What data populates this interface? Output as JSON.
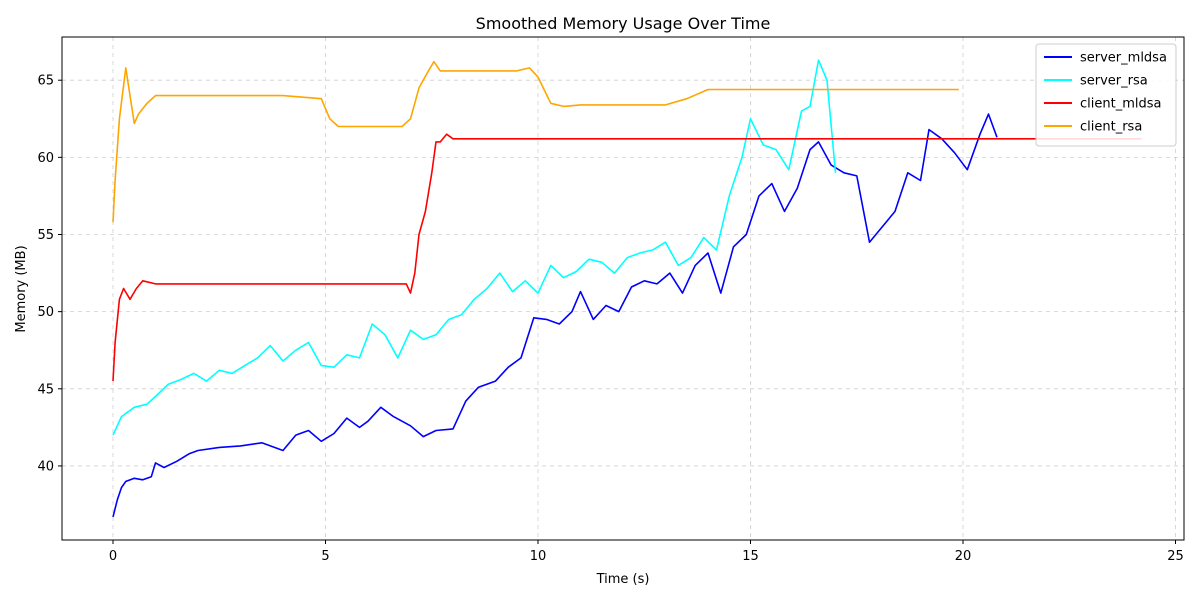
{
  "chart_data": {
    "type": "line",
    "title": "Smoothed Memory Usage Over Time",
    "xlabel": "Time (s)",
    "ylabel": "Memory (MB)",
    "xlim": [
      -1.2,
      25.2
    ],
    "ylim": [
      35.2,
      67.8
    ],
    "xticks": [
      0,
      5,
      10,
      15,
      20,
      25
    ],
    "yticks": [
      40,
      45,
      50,
      55,
      60,
      65
    ],
    "grid": true,
    "legend_position": "top-right",
    "series": [
      {
        "name": "server_mldsa",
        "color": "#0000ff",
        "x": [
          0,
          0.1,
          0.2,
          0.3,
          0.5,
          0.7,
          0.9,
          1.0,
          1.2,
          1.5,
          1.8,
          2.0,
          2.5,
          3.0,
          3.5,
          4.0,
          4.3,
          4.6,
          4.9,
          5.2,
          5.5,
          5.8,
          6.0,
          6.3,
          6.6,
          7.0,
          7.3,
          7.6,
          8.0,
          8.3,
          8.6,
          9.0,
          9.3,
          9.6,
          9.9,
          10.2,
          10.5,
          10.8,
          11.0,
          11.3,
          11.6,
          11.9,
          12.2,
          12.5,
          12.8,
          13.1,
          13.4,
          13.7,
          14.0,
          14.3,
          14.6,
          14.9,
          15.2,
          15.5,
          15.8,
          16.1,
          16.4,
          16.6,
          16.9,
          17.2,
          17.5,
          17.8,
          18.1,
          18.4,
          18.7,
          19.0,
          19.2,
          19.5,
          19.8,
          20.1,
          20.4,
          20.6,
          20.8
        ],
        "values": [
          36.7,
          37.8,
          38.6,
          39.0,
          39.2,
          39.1,
          39.3,
          40.2,
          39.9,
          40.3,
          40.8,
          41.0,
          41.2,
          41.3,
          41.5,
          41.0,
          42.0,
          42.3,
          41.6,
          42.1,
          43.1,
          42.5,
          42.9,
          43.8,
          43.2,
          42.6,
          41.9,
          42.3,
          42.4,
          44.2,
          45.1,
          45.5,
          46.4,
          47.0,
          49.6,
          49.5,
          49.2,
          50.0,
          51.3,
          49.5,
          50.4,
          50.0,
          51.6,
          52.0,
          51.8,
          52.5,
          51.2,
          53.0,
          53.8,
          51.2,
          54.2,
          55.0,
          57.5,
          58.3,
          56.5,
          58.0,
          60.5,
          61.0,
          59.5,
          59.0,
          58.8,
          54.5,
          55.5,
          56.5,
          59.0,
          58.5,
          61.8,
          61.2,
          60.3,
          59.2,
          61.5,
          62.8,
          61.3
        ]
      },
      {
        "name": "server_rsa",
        "color": "#00ffff",
        "x": [
          0,
          0.2,
          0.5,
          0.8,
          1.0,
          1.3,
          1.6,
          1.9,
          2.2,
          2.5,
          2.8,
          3.1,
          3.4,
          3.7,
          4.0,
          4.3,
          4.6,
          4.9,
          5.2,
          5.5,
          5.8,
          6.1,
          6.4,
          6.7,
          7.0,
          7.3,
          7.6,
          7.9,
          8.2,
          8.5,
          8.8,
          9.1,
          9.4,
          9.7,
          10.0,
          10.3,
          10.6,
          10.9,
          11.2,
          11.5,
          11.8,
          12.1,
          12.4,
          12.7,
          13.0,
          13.3,
          13.6,
          13.9,
          14.2,
          14.5,
          14.8,
          15.0,
          15.3,
          15.6,
          15.9,
          16.2,
          16.4,
          16.6,
          16.8,
          17.0
        ],
        "values": [
          42.0,
          43.2,
          43.8,
          44.0,
          44.5,
          45.3,
          45.6,
          46.0,
          45.5,
          46.2,
          46.0,
          46.5,
          47.0,
          47.8,
          46.8,
          47.5,
          48.0,
          46.5,
          46.4,
          47.2,
          47.0,
          49.2,
          48.5,
          47.0,
          48.8,
          48.2,
          48.5,
          49.5,
          49.8,
          50.8,
          51.5,
          52.5,
          51.3,
          52.0,
          51.2,
          53.0,
          52.2,
          52.6,
          53.4,
          53.2,
          52.5,
          53.5,
          53.8,
          54.0,
          54.5,
          53.0,
          53.5,
          54.8,
          54.0,
          57.5,
          60.0,
          62.5,
          60.8,
          60.5,
          59.2,
          63.0,
          63.3,
          66.3,
          65.0,
          59.0
        ]
      },
      {
        "name": "client_mldsa",
        "color": "#ff0000",
        "x": [
          0,
          0.05,
          0.15,
          0.25,
          0.4,
          0.55,
          0.7,
          1.0,
          2.0,
          3.0,
          4.0,
          5.0,
          6.0,
          6.9,
          7.0,
          7.1,
          7.2,
          7.35,
          7.5,
          7.6,
          7.7,
          7.85,
          8.0,
          9.0,
          10.0,
          12.0,
          15.0,
          18.0,
          21.0,
          24.2
        ],
        "values": [
          45.5,
          48.0,
          50.8,
          51.5,
          50.8,
          51.5,
          52.0,
          51.8,
          51.8,
          51.8,
          51.8,
          51.8,
          51.8,
          51.8,
          51.2,
          52.5,
          55.0,
          56.5,
          59.0,
          61.0,
          61.0,
          61.5,
          61.2,
          61.2,
          61.2,
          61.2,
          61.2,
          61.2,
          61.2,
          61.2
        ]
      },
      {
        "name": "client_rsa",
        "color": "#ffa500",
        "x": [
          0,
          0.05,
          0.15,
          0.3,
          0.4,
          0.5,
          0.6,
          0.8,
          1.0,
          2.0,
          3.0,
          4.0,
          4.9,
          5.1,
          5.3,
          6.0,
          6.8,
          7.0,
          7.2,
          7.4,
          7.55,
          7.7,
          8.0,
          9.0,
          9.5,
          9.8,
          10.0,
          10.3,
          10.6,
          11.0,
          12.0,
          13.0,
          13.5,
          14.0,
          15.0,
          17.0,
          19.0,
          19.9
        ],
        "values": [
          55.8,
          58.5,
          62.5,
          65.8,
          64.0,
          62.2,
          62.8,
          63.5,
          64.0,
          64.0,
          64.0,
          64.0,
          63.8,
          62.5,
          62.0,
          62.0,
          62.0,
          62.5,
          64.5,
          65.5,
          66.2,
          65.6,
          65.6,
          65.6,
          65.6,
          65.8,
          65.2,
          63.5,
          63.3,
          63.4,
          63.4,
          63.4,
          63.8,
          64.4,
          64.4,
          64.4,
          64.4,
          64.4
        ]
      }
    ]
  }
}
